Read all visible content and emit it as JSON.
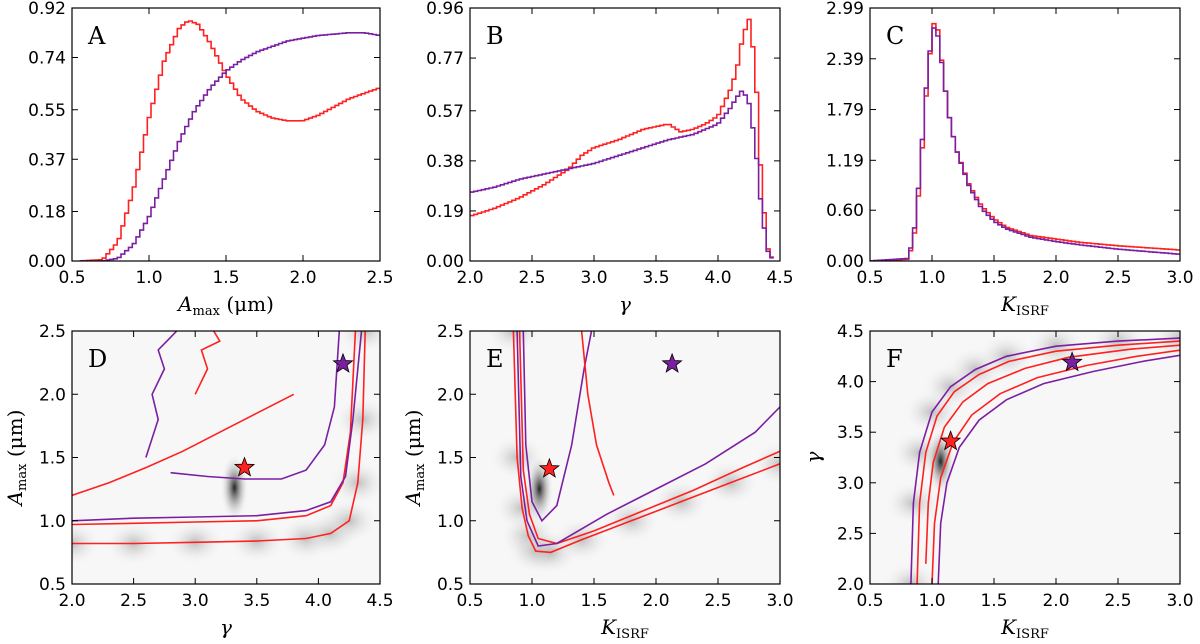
{
  "chart_data": [
    {
      "type": "line",
      "letter": "A",
      "xlabel": "A_max (μm)",
      "xlabel_main": "A",
      "xlabel_sub": "max",
      "xlabel_unit": " (μm)",
      "ylabel": "",
      "xlim": [
        0.5,
        2.5
      ],
      "ylim": [
        0,
        0.92
      ],
      "xticks": [
        "0.5",
        "1.0",
        "1.5",
        "2.0",
        "2.5"
      ],
      "yticks": [
        "0.00",
        "0.18",
        "0.37",
        "0.55",
        "0.74",
        "0.92"
      ],
      "series": [
        {
          "name": "red",
          "color": "#ff2020",
          "x": [
            0.55,
            0.7,
            0.8,
            0.9,
            1.0,
            1.1,
            1.2,
            1.26,
            1.32,
            1.4,
            1.5,
            1.6,
            1.7,
            1.8,
            1.9,
            2.0,
            2.1,
            2.2,
            2.3,
            2.4,
            2.5
          ],
          "y": [
            0.0,
            0.005,
            0.07,
            0.26,
            0.52,
            0.73,
            0.85,
            0.875,
            0.86,
            0.79,
            0.68,
            0.59,
            0.545,
            0.52,
            0.51,
            0.51,
            0.53,
            0.56,
            0.59,
            0.61,
            0.63
          ]
        },
        {
          "name": "purple",
          "color": "#7b1fa2",
          "x": [
            0.55,
            0.7,
            0.8,
            0.9,
            1.0,
            1.1,
            1.2,
            1.3,
            1.4,
            1.5,
            1.6,
            1.7,
            1.8,
            1.9,
            2.0,
            2.1,
            2.2,
            2.3,
            2.4,
            2.5
          ],
          "y": [
            0.0,
            0.0,
            0.01,
            0.06,
            0.16,
            0.3,
            0.44,
            0.55,
            0.63,
            0.69,
            0.73,
            0.76,
            0.78,
            0.8,
            0.81,
            0.82,
            0.825,
            0.83,
            0.83,
            0.82
          ]
        }
      ]
    },
    {
      "type": "line",
      "letter": "B",
      "xlabel": "γ",
      "xlabel_main": "γ",
      "xlabel_sub": "",
      "xlabel_unit": "",
      "ylabel": "",
      "xlim": [
        2.0,
        4.5
      ],
      "ylim": [
        0,
        0.96
      ],
      "xticks": [
        "2.0",
        "2.5",
        "3.0",
        "3.5",
        "4.0",
        "4.5"
      ],
      "yticks": [
        "0.00",
        "0.19",
        "0.38",
        "0.57",
        "0.77",
        "0.96"
      ],
      "series": [
        {
          "name": "red",
          "color": "#ff2020",
          "x": [
            2.0,
            2.2,
            2.4,
            2.6,
            2.8,
            2.9,
            3.0,
            3.2,
            3.4,
            3.6,
            3.7,
            3.8,
            3.9,
            4.0,
            4.1,
            4.15,
            4.2,
            4.25,
            4.3,
            4.35,
            4.4,
            4.45
          ],
          "y": [
            0.17,
            0.2,
            0.24,
            0.29,
            0.35,
            0.4,
            0.43,
            0.46,
            0.5,
            0.52,
            0.49,
            0.5,
            0.52,
            0.55,
            0.65,
            0.72,
            0.85,
            0.92,
            0.75,
            0.3,
            0.05,
            0.0
          ]
        },
        {
          "name": "purple",
          "color": "#7b1fa2",
          "x": [
            2.0,
            2.2,
            2.4,
            2.6,
            2.8,
            3.0,
            3.2,
            3.4,
            3.6,
            3.8,
            3.9,
            4.0,
            4.1,
            4.15,
            4.2,
            4.25,
            4.3,
            4.35,
            4.4,
            4.45
          ],
          "y": [
            0.26,
            0.28,
            0.31,
            0.33,
            0.35,
            0.37,
            0.4,
            0.43,
            0.46,
            0.48,
            0.5,
            0.52,
            0.58,
            0.62,
            0.65,
            0.6,
            0.45,
            0.2,
            0.04,
            0.0
          ]
        }
      ]
    },
    {
      "type": "line",
      "letter": "C",
      "xlabel": "K_ISRF",
      "xlabel_main": "K",
      "xlabel_sub": "ISRF",
      "xlabel_unit": "",
      "ylabel": "",
      "xlim": [
        0.5,
        3.0
      ],
      "ylim": [
        0,
        2.99
      ],
      "xticks": [
        "0.5",
        "1.0",
        "1.5",
        "2.0",
        "2.5",
        "3.0"
      ],
      "yticks": [
        "0.00",
        "0.60",
        "1.19",
        "1.79",
        "2.39",
        "2.99"
      ],
      "series": [
        {
          "name": "red",
          "color": "#ff2020",
          "x": [
            0.5,
            0.8,
            0.85,
            0.9,
            0.95,
            1.0,
            1.03,
            1.06,
            1.1,
            1.15,
            1.2,
            1.3,
            1.4,
            1.5,
            1.6,
            1.8,
            2.0,
            2.2,
            2.5,
            3.0
          ],
          "y": [
            0.0,
            0.02,
            0.2,
            0.9,
            1.9,
            2.7,
            2.9,
            2.6,
            2.1,
            1.6,
            1.3,
            0.9,
            0.65,
            0.5,
            0.4,
            0.3,
            0.26,
            0.22,
            0.18,
            0.13
          ]
        },
        {
          "name": "purple",
          "color": "#7b1fa2",
          "x": [
            0.5,
            0.8,
            0.85,
            0.9,
            0.95,
            1.0,
            1.03,
            1.06,
            1.1,
            1.15,
            1.2,
            1.3,
            1.4,
            1.5,
            1.6,
            1.8,
            2.0,
            2.2,
            2.5,
            3.0
          ],
          "y": [
            0.0,
            0.03,
            0.25,
            1.0,
            2.0,
            2.7,
            2.8,
            2.55,
            2.1,
            1.6,
            1.3,
            0.88,
            0.62,
            0.47,
            0.38,
            0.28,
            0.23,
            0.19,
            0.14,
            0.08
          ]
        }
      ]
    },
    {
      "type": "heatmap",
      "letter": "D",
      "xlabel": "γ",
      "xlabel_main": "γ",
      "xlabel_sub": "",
      "xlabel_unit": "",
      "ylabel": "A_max (μm)",
      "ylabel_main": "A",
      "ylabel_sub": "max",
      "ylabel_unit": " (μm)",
      "xlim": [
        2.0,
        4.5
      ],
      "ylim": [
        0.5,
        2.5
      ],
      "xticks": [
        "2.0",
        "2.5",
        "3.0",
        "3.5",
        "4.0",
        "4.5"
      ],
      "yticks": [
        "0.5",
        "1.0",
        "1.5",
        "2.0",
        "2.5"
      ],
      "stars": [
        {
          "x": 3.4,
          "y": 1.42,
          "color": "#ff2020"
        },
        {
          "x": 4.2,
          "y": 2.24,
          "color": "#7b1fa2"
        }
      ],
      "contours": [
        {
          "color": "#ff2020",
          "x": [
            2.0,
            2.5,
            3.0,
            3.5,
            3.9,
            4.1,
            4.25,
            4.32,
            4.36,
            4.38
          ],
          "y": [
            0.82,
            0.82,
            0.83,
            0.84,
            0.86,
            0.9,
            1.0,
            1.3,
            1.8,
            2.5
          ]
        },
        {
          "color": "#ff2020",
          "x": [
            2.0,
            2.5,
            3.0,
            3.5,
            3.9,
            4.1,
            4.2,
            4.26,
            4.3
          ],
          "y": [
            0.97,
            0.98,
            0.99,
            1.0,
            1.04,
            1.12,
            1.3,
            1.7,
            2.5
          ]
        },
        {
          "color": "#7b1fa2",
          "x": [
            2.0,
            2.5,
            3.0,
            3.5,
            3.9,
            4.1,
            4.22,
            4.28,
            4.32,
            4.35
          ],
          "y": [
            1.0,
            1.02,
            1.03,
            1.04,
            1.08,
            1.15,
            1.35,
            1.8,
            2.2,
            2.5
          ]
        },
        {
          "color": "#7b1fa2",
          "x": [
            2.8,
            3.1,
            3.4,
            3.7,
            3.9,
            4.05,
            4.13,
            4.17
          ],
          "y": [
            1.38,
            1.35,
            1.33,
            1.33,
            1.4,
            1.6,
            1.9,
            2.5
          ]
        },
        {
          "color": "#ff2020",
          "x": [
            2.0,
            2.3,
            2.6,
            2.9,
            3.2,
            3.5,
            3.8
          ],
          "y": [
            1.2,
            1.3,
            1.42,
            1.55,
            1.7,
            1.85,
            2.0
          ]
        },
        {
          "color": "#7b1fa2",
          "x": [
            2.6,
            2.7,
            2.65,
            2.75,
            2.7,
            2.8,
            2.85
          ],
          "y": [
            1.5,
            1.8,
            2.0,
            2.2,
            2.35,
            2.45,
            2.5
          ]
        },
        {
          "color": "#ff2020",
          "x": [
            3.0,
            3.1,
            3.05,
            3.2,
            3.15
          ],
          "y": [
            2.0,
            2.2,
            2.35,
            2.42,
            2.5
          ]
        }
      ]
    },
    {
      "type": "heatmap",
      "letter": "E",
      "xlabel": "K_ISRF",
      "xlabel_main": "K",
      "xlabel_sub": "ISRF",
      "xlabel_unit": "",
      "ylabel": "A_max (μm)",
      "ylabel_main": "A",
      "ylabel_sub": "max",
      "ylabel_unit": " (μm)",
      "xlim": [
        0.5,
        3.0
      ],
      "ylim": [
        0.5,
        2.5
      ],
      "xticks": [
        "0.5",
        "1.0",
        "1.5",
        "2.0",
        "2.5",
        "3.0"
      ],
      "yticks": [
        "0.5",
        "1.0",
        "1.5",
        "2.0",
        "2.5"
      ],
      "stars": [
        {
          "x": 1.14,
          "y": 1.41,
          "color": "#ff2020"
        },
        {
          "x": 2.13,
          "y": 2.24,
          "color": "#7b1fa2"
        }
      ],
      "contours": [
        {
          "color": "#ff2020",
          "x": [
            0.85,
            0.88,
            0.92,
            0.97,
            1.03,
            1.15,
            1.4,
            1.8,
            2.2,
            2.6,
            3.0
          ],
          "y": [
            2.5,
            1.5,
            1.1,
            0.88,
            0.76,
            0.75,
            0.85,
            1.0,
            1.15,
            1.3,
            1.45
          ]
        },
        {
          "color": "#ff2020",
          "x": [
            0.9,
            0.93,
            0.98,
            1.05,
            1.2,
            1.5,
            1.9,
            2.3,
            2.7,
            3.0
          ],
          "y": [
            2.5,
            1.4,
            1.05,
            0.86,
            0.82,
            0.92,
            1.08,
            1.24,
            1.42,
            1.55
          ]
        },
        {
          "color": "#7b1fa2",
          "x": [
            0.88,
            0.91,
            0.96,
            1.05,
            1.2,
            1.6,
            2.0,
            2.4,
            2.8,
            3.0
          ],
          "y": [
            2.5,
            1.35,
            1.0,
            0.8,
            0.82,
            1.05,
            1.25,
            1.45,
            1.7,
            1.9
          ]
        },
        {
          "color": "#7b1fa2",
          "x": [
            0.93,
            0.95,
            1.0,
            1.08,
            1.2,
            1.32,
            1.42,
            1.48
          ],
          "y": [
            2.5,
            1.6,
            1.15,
            1.0,
            1.12,
            1.6,
            2.2,
            2.5
          ]
        },
        {
          "color": "#ff2020",
          "x": [
            1.4,
            1.45,
            1.52,
            1.62,
            1.66
          ],
          "y": [
            2.5,
            2.0,
            1.6,
            1.3,
            1.2
          ]
        }
      ]
    },
    {
      "type": "heatmap",
      "letter": "F",
      "xlabel": "K_ISRF",
      "xlabel_main": "K",
      "xlabel_sub": "ISRF",
      "xlabel_unit": "",
      "ylabel": "γ",
      "ylabel_main": "γ",
      "ylabel_sub": "",
      "ylabel_unit": "",
      "xlim": [
        0.5,
        3.0
      ],
      "ylim": [
        2.0,
        4.5
      ],
      "xticks": [
        "0.5",
        "1.0",
        "1.5",
        "2.0",
        "2.5",
        "3.0"
      ],
      "yticks": [
        "2.0",
        "2.5",
        "3.0",
        "3.5",
        "4.0",
        "4.5"
      ],
      "stars": [
        {
          "x": 1.15,
          "y": 3.41,
          "color": "#ff2020"
        },
        {
          "x": 2.13,
          "y": 4.19,
          "color": "#7b1fa2"
        }
      ],
      "contours": [
        {
          "color": "#7b1fa2",
          "x": [
            0.83,
            0.85,
            0.9,
            1.0,
            1.15,
            1.35,
            1.6,
            2.0,
            2.5,
            3.0
          ],
          "y": [
            2.0,
            2.8,
            3.3,
            3.7,
            3.95,
            4.12,
            4.25,
            4.35,
            4.4,
            4.43
          ]
        },
        {
          "color": "#7b1fa2",
          "x": [
            1.05,
            1.07,
            1.12,
            1.22,
            1.38,
            1.6,
            1.9,
            2.3,
            2.7,
            3.0
          ],
          "y": [
            2.0,
            2.6,
            3.0,
            3.35,
            3.62,
            3.82,
            3.98,
            4.1,
            4.2,
            4.26
          ]
        },
        {
          "color": "#ff2020",
          "x": [
            0.88,
            0.9,
            0.95,
            1.04,
            1.18,
            1.38,
            1.62,
            2.0,
            2.5,
            3.0
          ],
          "y": [
            2.0,
            2.8,
            3.3,
            3.66,
            3.9,
            4.07,
            4.2,
            4.3,
            4.36,
            4.4
          ]
        },
        {
          "color": "#ff2020",
          "x": [
            1.0,
            1.02,
            1.07,
            1.17,
            1.32,
            1.55,
            1.85,
            2.25,
            2.65,
            3.0
          ],
          "y": [
            2.0,
            2.6,
            3.05,
            3.4,
            3.67,
            3.88,
            4.04,
            4.16,
            4.25,
            4.31
          ]
        },
        {
          "color": "#ff2020",
          "x": [
            0.95,
            0.97,
            1.01,
            1.1,
            1.25,
            1.45,
            1.75,
            2.1,
            2.6,
            3.0
          ],
          "y": [
            2.2,
            2.8,
            3.2,
            3.55,
            3.8,
            3.98,
            4.13,
            4.24,
            4.32,
            4.36
          ]
        }
      ]
    }
  ]
}
